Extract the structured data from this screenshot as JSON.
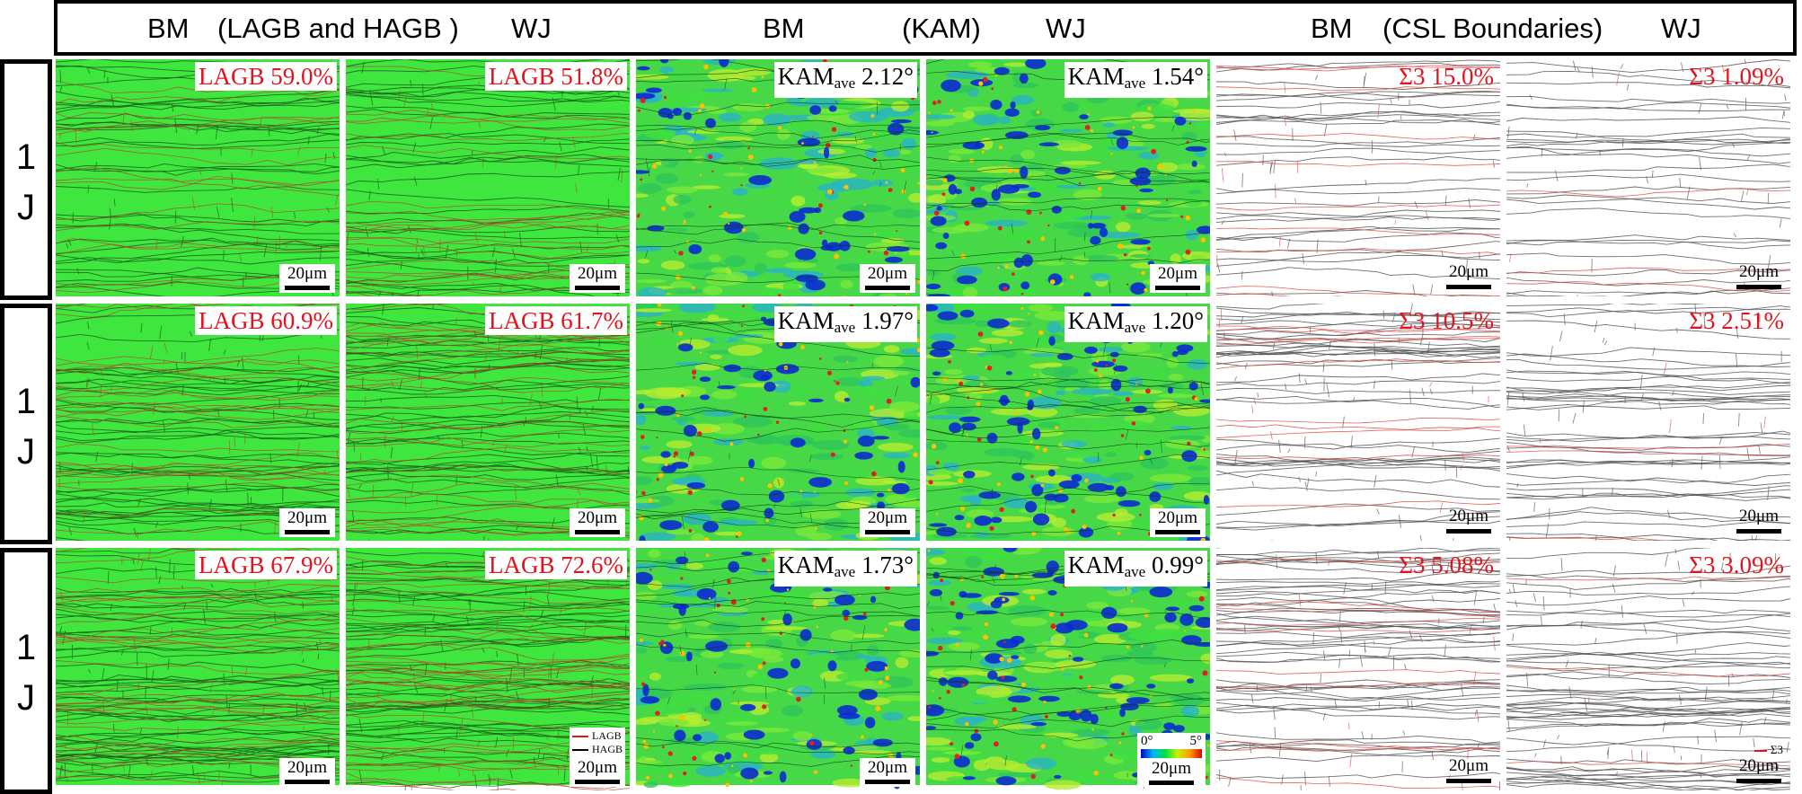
{
  "header": {
    "items": [
      "BM",
      "(LAGB and HAGB )",
      "WJ",
      "BM",
      "(KAM)",
      "WJ",
      "BM",
      "(CSL Boundaries)",
      "WJ"
    ]
  },
  "rows": [
    {
      "label_a": "1",
      "label_b": "J",
      "panels": [
        {
          "label": "LAGB 59.0%",
          "scale": "20μm"
        },
        {
          "label": "LAGB 51.8%",
          "scale": "20μm"
        },
        {
          "label_main": "KAM",
          "label_sub": "ave",
          "label_value": " 2.12°",
          "scale": "20μm"
        },
        {
          "label_main": "KAM",
          "label_sub": "ave",
          "label_value": " 1.54°",
          "scale": "20μm"
        },
        {
          "label": "Σ3 15.0%",
          "scale": "20μm"
        },
        {
          "label": "Σ3 1.09%",
          "scale": "20μm"
        }
      ]
    },
    {
      "label_a": "1",
      "label_b": "J",
      "panels": [
        {
          "label": "LAGB 60.9%",
          "scale": "20μm"
        },
        {
          "label": "LAGB 61.7%",
          "scale": "20μm"
        },
        {
          "label_main": "KAM",
          "label_sub": "ave",
          "label_value": " 1.97°",
          "scale": "20μm"
        },
        {
          "label_main": "KAM",
          "label_sub": "ave",
          "label_value": " 1.20°",
          "scale": "20μm"
        },
        {
          "label": "Σ3 10.5%",
          "scale": "20μm"
        },
        {
          "label": "Σ3 2.51%",
          "scale": "20μm"
        }
      ]
    },
    {
      "label_a": "1",
      "label_b": "J",
      "panels": [
        {
          "label": "LAGB 67.9%",
          "scale": "20μm"
        },
        {
          "label": "LAGB 72.6%",
          "scale": "20μm"
        },
        {
          "label_main": "KAM",
          "label_sub": "ave",
          "label_value": " 1.73°",
          "scale": "20μm"
        },
        {
          "label_main": "KAM",
          "label_sub": "ave",
          "label_value": " 0.99°",
          "scale": "20μm"
        },
        {
          "label": "Σ3 5.08%",
          "scale": "20μm"
        },
        {
          "label": "Σ3 3.09%",
          "scale": "20μm"
        }
      ]
    }
  ],
  "legends": {
    "gb_lagb": "LAGB",
    "gb_hagb": "HAGB",
    "kam_min": "0°",
    "kam_max": "5°",
    "sigma": "Σ3"
  },
  "colors": {
    "lagb_label": "#e0141e",
    "gb_map_green": "#3ee63e",
    "kam_blue": "#0020c8",
    "kam_green": "#40e040",
    "csl_bg": "#ffffff"
  }
}
